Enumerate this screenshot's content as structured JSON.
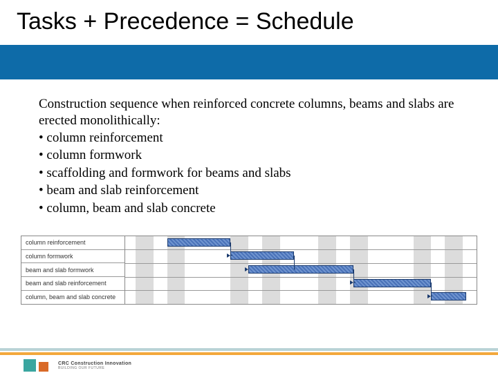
{
  "title": "Tasks + Precedence = Schedule",
  "intro": "Construction sequence when reinforced concrete columns, beams and slabs are erected monolithically:",
  "bullets": [
    "column reinforcement",
    "column formwork",
    "scaffolding and formwork for beams and slabs",
    "beam and slab reinforcement",
    "column, beam and slab concrete"
  ],
  "colors": {
    "band": "#0e6ba8",
    "bar_fill": "#4a72b8",
    "bar_border": "#1a3a6e",
    "grid_col": "#dcdcdc",
    "grid_line": "#999999",
    "footer_top": "#b9d3d6",
    "footer_bottom": "#f3a83c",
    "logo_sq1": "#3aa6a0",
    "logo_sq2": "#d96a28"
  },
  "gantt": {
    "labels": [
      "column reinforcement",
      "column formwork",
      "beam and slab formwork",
      "beam and slab reinforcement",
      "column, beam and slab concrete"
    ],
    "row_height_pct": 20,
    "columns": [
      {
        "left_pct": 3,
        "width_pct": 5
      },
      {
        "left_pct": 12,
        "width_pct": 5
      },
      {
        "left_pct": 30,
        "width_pct": 5
      },
      {
        "left_pct": 39,
        "width_pct": 5
      },
      {
        "left_pct": 55,
        "width_pct": 5
      },
      {
        "left_pct": 64,
        "width_pct": 5
      },
      {
        "left_pct": 82,
        "width_pct": 5
      },
      {
        "left_pct": 91,
        "width_pct": 5
      }
    ],
    "bars": [
      {
        "row": 0,
        "left_pct": 12,
        "width_pct": 18
      },
      {
        "row": 1,
        "left_pct": 30,
        "width_pct": 18
      },
      {
        "row": 2,
        "left_pct": 35,
        "width_pct": 30
      },
      {
        "row": 3,
        "left_pct": 65,
        "width_pct": 22
      },
      {
        "row": 4,
        "left_pct": 87,
        "width_pct": 10
      }
    ],
    "links": [
      {
        "from_bar": 0,
        "to_bar": 1
      },
      {
        "from_bar": 1,
        "to_bar": 2
      },
      {
        "from_bar": 2,
        "to_bar": 3
      },
      {
        "from_bar": 3,
        "to_bar": 4
      }
    ]
  },
  "logo": {
    "line1": "Construction Innovation",
    "line2": "BUILDING OUR FUTURE",
    "crc": "CRC"
  }
}
